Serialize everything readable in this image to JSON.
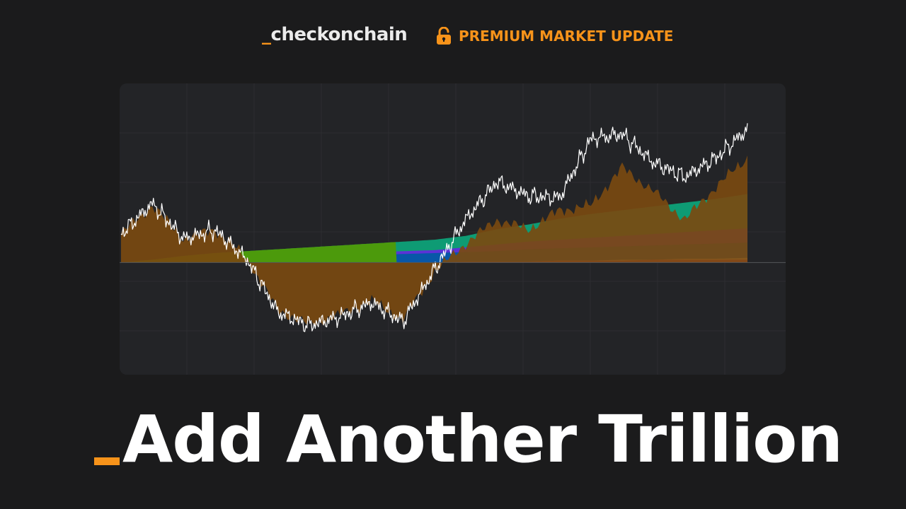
{
  "header": {
    "brand_prefix": "_",
    "brand_name": "checkonchain",
    "premium_label": "PREMIUM MARKET UPDATE",
    "premium_icon": "lock-open-icon"
  },
  "title": {
    "prefix": "_",
    "text": "Add Another Trillion"
  },
  "colors": {
    "background": "#1b1b1c",
    "panel": "#232427",
    "accent": "#f7931a",
    "price_line": "#ffffff",
    "premium_area": "#7a4a10",
    "band_green_early": "#4c9a0c",
    "band_teal": "#0e9b74",
    "band_purple": "#5b33d6",
    "band_blue": "#0757a8",
    "band_cream": "#f5dfb0",
    "band_red": "#f2386b"
  },
  "chart_data": {
    "type": "area",
    "title": "",
    "xlabel": "",
    "ylabel": "",
    "grid": true,
    "legend": "none",
    "ylim": [
      -100,
      200
    ],
    "x": [
      0,
      5,
      10,
      15,
      20,
      25,
      30,
      35,
      40,
      45,
      50,
      55,
      60,
      65,
      70,
      75,
      80,
      85,
      90,
      95,
      100
    ],
    "series": [
      {
        "color": "#0757a8",
        "values": [
          0,
          1,
          2,
          3,
          4,
          5,
          6,
          7,
          8,
          9,
          10,
          11,
          12,
          14,
          15,
          16,
          17,
          18,
          19,
          20,
          21
        ]
      },
      {
        "color": "#5b33d6",
        "values": [
          0,
          2,
          4,
          6,
          7,
          8,
          9,
          10,
          11,
          12,
          13,
          16,
          19,
          22,
          24,
          26,
          28,
          30,
          32,
          34,
          36
        ]
      },
      {
        "color": "#0e9b74",
        "values": [
          0,
          3,
          7,
          10,
          12,
          14,
          16,
          18,
          20,
          22,
          24,
          28,
          35,
          40,
          46,
          51,
          55,
          59,
          63,
          67,
          72
        ]
      },
      {
        "color": "#f5dfb0",
        "values": [
          0,
          0,
          0,
          0,
          0,
          0,
          0,
          0,
          0,
          0,
          0,
          0,
          1,
          1,
          2,
          2,
          3,
          3,
          4,
          4,
          5
        ]
      },
      {
        "color": "#f2386b",
        "values": [
          0,
          0,
          0,
          0,
          0,
          0,
          0,
          0,
          0,
          0,
          0,
          1,
          1,
          1,
          2,
          2,
          2,
          3,
          3,
          3,
          3
        ]
      },
      {
        "color": "#7a4a10",
        "values": [
          30,
          60,
          25,
          35,
          5,
          -50,
          -65,
          -55,
          -40,
          -60,
          -10,
          20,
          45,
          35,
          55,
          60,
          100,
          75,
          45,
          80,
          110
        ]
      },
      {
        "color": "#ffffff",
        "values": [
          30,
          62,
          25,
          34,
          4,
          -52,
          -66,
          -57,
          -42,
          -62,
          -8,
          45,
          85,
          70,
          68,
          130,
          135,
          105,
          90,
          110,
          140
        ]
      }
    ]
  }
}
